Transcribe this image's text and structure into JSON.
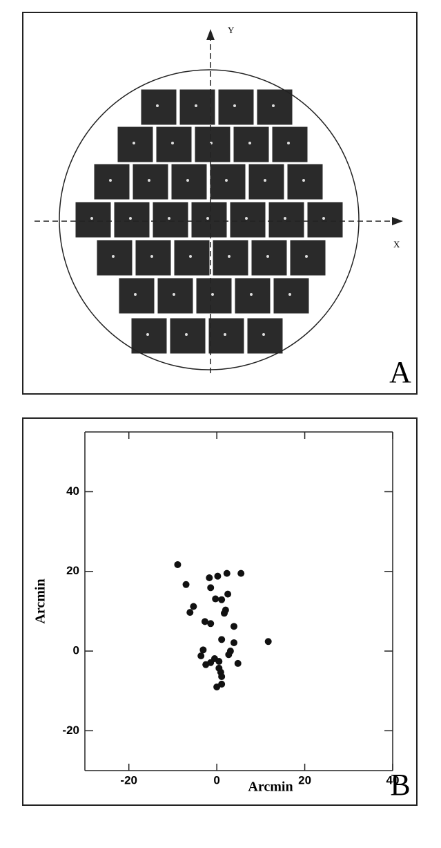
{
  "panel_a": {
    "label": "A",
    "x_axis_label": "X",
    "y_axis_label": "Y"
  },
  "chart_data": {
    "type": "scatter",
    "panel_label": "B",
    "x_label": "Arcmin",
    "y_label": "Arcmin",
    "x": [
      -8.9,
      -7.0,
      -1.7,
      0.2,
      2.3,
      5.5,
      -1.4,
      -5.3,
      -6.1,
      -0.3,
      1.1,
      2.5,
      2.0,
      1.7,
      -2.7,
      -1.4,
      3.9,
      1.1,
      11.7,
      3.9,
      -3.1,
      3.1,
      -3.6,
      2.7,
      -0.5,
      0.5,
      -1.4,
      -2.5,
      4.8,
      0.5,
      0.9,
      1.1,
      1.1,
      0.0
    ],
    "y": [
      21.7,
      16.7,
      18.4,
      18.8,
      19.5,
      19.5,
      15.9,
      11.2,
      9.7,
      13.1,
      12.9,
      14.3,
      10.3,
      9.5,
      7.4,
      6.9,
      6.2,
      2.9,
      2.4,
      2.1,
      0.3,
      0.0,
      -1.2,
      -0.9,
      -1.9,
      -2.6,
      -2.9,
      -3.4,
      -3.1,
      -4.3,
      -5.3,
      -6.4,
      -8.3,
      -9.0
    ],
    "color": "#111111",
    "xlim": [
      -30,
      40
    ],
    "ylim": [
      -30,
      55
    ],
    "xticks": [
      -20,
      0,
      20,
      40
    ],
    "yticks": [
      -20,
      0,
      20,
      40
    ]
  }
}
